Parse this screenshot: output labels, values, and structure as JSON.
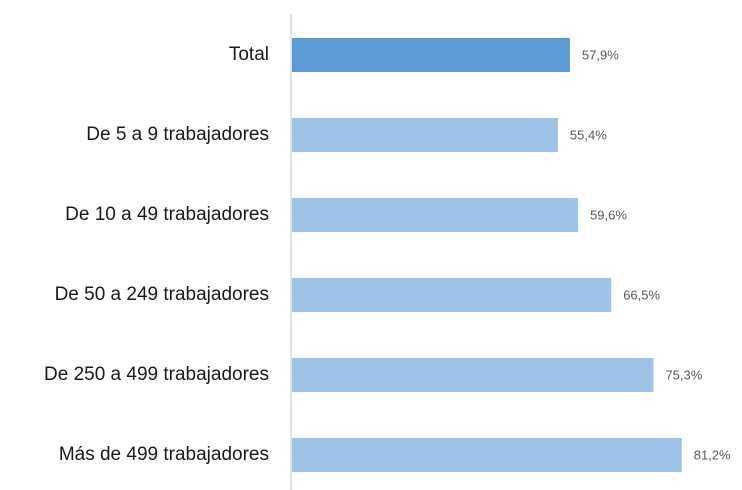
{
  "chart_data": {
    "type": "bar",
    "orientation": "horizontal",
    "categories": [
      "Total",
      "De 5 a 9 trabajadores",
      "De 10 a 49 trabajadores",
      "De 50 a 249 trabajadores",
      "De 250 a 499 trabajadores",
      "Más de 499 trabajadores"
    ],
    "values": [
      57.9,
      55.4,
      59.6,
      66.5,
      75.3,
      81.2
    ],
    "value_labels": [
      "57,9%",
      "55,4%",
      "59,6%",
      "66,5%",
      "75,3%",
      "81,2%"
    ],
    "colors": [
      "#5b9bd5",
      "#9dc3e6",
      "#9dc3e6",
      "#9dc3e6",
      "#9dc3e6",
      "#9dc3e6"
    ]
  }
}
